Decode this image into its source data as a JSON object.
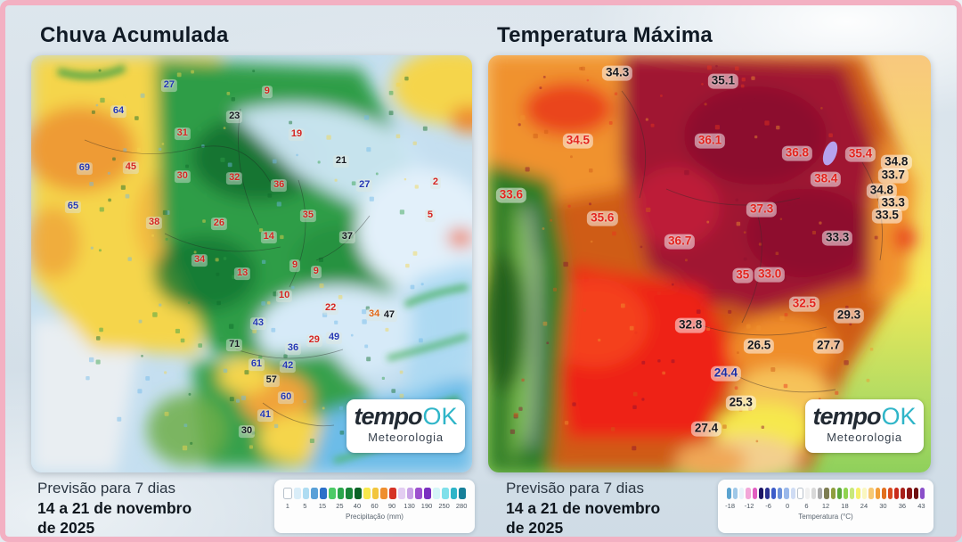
{
  "frame": {
    "border_color": "#f3b0c2"
  },
  "branding": {
    "logo_tempo": "tempo",
    "logo_ok": "OK",
    "logo_subtitle": "Meteorologia",
    "logo_accent": "#2fb5c8"
  },
  "left_panel": {
    "title": "Chuva Acumulada",
    "forecast": {
      "line1": "Previsão para 7 dias",
      "line2": "14 a 21 de novembro",
      "line3": "de 2025"
    }
  },
  "right_panel": {
    "title": "Temperatura Máxima",
    "forecast": {
      "line1": "Previsão para 7 dias",
      "line2": "14 a 21 de novembro",
      "line3": "de 2025"
    }
  },
  "chart_data": [
    {
      "type": "heatmap",
      "title": "Chuva Acumulada",
      "legend_label": "Precipitação (mm)",
      "legend_ticks": [
        "1",
        "5",
        "15",
        "25",
        "40",
        "60",
        "90",
        "130",
        "190",
        "250",
        "280"
      ],
      "legend_colors": [
        "#ffffff",
        "#d9edf8",
        "#aedcf2",
        "#59a0d8",
        "#2b6fc9",
        "#4ccb66",
        "#2aa64b",
        "#188538",
        "#0a6326",
        "#f7e84c",
        "#f2c63d",
        "#ef8e2e",
        "#d63226",
        "#e3cdf2",
        "#c9a2e6",
        "#9c50ce",
        "#7a2fc0",
        "#d4f5f8",
        "#7fe0ea",
        "#2cb4c8",
        "#167f99"
      ],
      "label_colors": {
        "blue": "#2438b4",
        "red": "#d42420",
        "dark": "#14181f",
        "orange": "#e06818"
      },
      "point_labels": [
        {
          "v": "27",
          "x": 31.3,
          "y": 7.3,
          "c": "blue"
        },
        {
          "v": "9",
          "x": 53.5,
          "y": 8.8,
          "c": "red"
        },
        {
          "v": "64",
          "x": 19.8,
          "y": 13.5,
          "c": "blue"
        },
        {
          "v": "23",
          "x": 46.1,
          "y": 14.7,
          "c": "dark"
        },
        {
          "v": "31",
          "x": 34.3,
          "y": 18.8,
          "c": "red"
        },
        {
          "v": "19",
          "x": 60.2,
          "y": 19.0,
          "c": "red"
        },
        {
          "v": "21",
          "x": 70.3,
          "y": 25.4,
          "c": "dark"
        },
        {
          "v": "69",
          "x": 12.1,
          "y": 27.1,
          "c": "blue"
        },
        {
          "v": "45",
          "x": 22.6,
          "y": 26.9,
          "c": "red"
        },
        {
          "v": "30",
          "x": 34.3,
          "y": 29.1,
          "c": "red"
        },
        {
          "v": "32",
          "x": 46.1,
          "y": 29.5,
          "c": "red"
        },
        {
          "v": "36",
          "x": 56.2,
          "y": 31.2,
          "c": "red"
        },
        {
          "v": "2",
          "x": 91.7,
          "y": 30.6,
          "c": "red"
        },
        {
          "v": "27",
          "x": 75.6,
          "y": 31.2,
          "c": "blue"
        },
        {
          "v": "65",
          "x": 9.5,
          "y": 36.3,
          "c": "blue"
        },
        {
          "v": "38",
          "x": 27.9,
          "y": 40.2,
          "c": "red"
        },
        {
          "v": "26",
          "x": 42.6,
          "y": 40.4,
          "c": "red"
        },
        {
          "v": "35",
          "x": 62.8,
          "y": 38.5,
          "c": "red"
        },
        {
          "v": "5",
          "x": 90.5,
          "y": 38.5,
          "c": "red"
        },
        {
          "v": "14",
          "x": 53.9,
          "y": 43.6,
          "c": "red"
        },
        {
          "v": "37",
          "x": 71.7,
          "y": 43.6,
          "c": "dark"
        },
        {
          "v": "34",
          "x": 38.2,
          "y": 49.1,
          "c": "red"
        },
        {
          "v": "13",
          "x": 47.9,
          "y": 52.4,
          "c": "red"
        },
        {
          "v": "9",
          "x": 59.8,
          "y": 50.4,
          "c": "red"
        },
        {
          "v": "9",
          "x": 64.6,
          "y": 51.9,
          "c": "red"
        },
        {
          "v": "10",
          "x": 57.4,
          "y": 57.7,
          "c": "red"
        },
        {
          "v": "22",
          "x": 67.9,
          "y": 60.7,
          "c": "red"
        },
        {
          "v": "43",
          "x": 51.5,
          "y": 64.3,
          "c": "blue"
        },
        {
          "v": "34",
          "x": 77.8,
          "y": 62.2,
          "c": "orange"
        },
        {
          "v": "47",
          "x": 81.2,
          "y": 62.4,
          "c": "dark"
        },
        {
          "v": "71",
          "x": 46.1,
          "y": 69.4,
          "c": "dark"
        },
        {
          "v": "29",
          "x": 64.2,
          "y": 68.4,
          "c": "red"
        },
        {
          "v": "49",
          "x": 68.7,
          "y": 67.7,
          "c": "blue"
        },
        {
          "v": "36",
          "x": 59.4,
          "y": 70.3,
          "c": "blue"
        },
        {
          "v": "61",
          "x": 51.1,
          "y": 74.1,
          "c": "blue"
        },
        {
          "v": "42",
          "x": 58.2,
          "y": 74.6,
          "c": "blue"
        },
        {
          "v": "57",
          "x": 54.5,
          "y": 78.0,
          "c": "dark"
        },
        {
          "v": "60",
          "x": 57.8,
          "y": 82.1,
          "c": "blue"
        },
        {
          "v": "41",
          "x": 53.1,
          "y": 86.3,
          "c": "blue"
        },
        {
          "v": "30",
          "x": 48.9,
          "y": 90.2,
          "c": "dark"
        }
      ]
    },
    {
      "type": "heatmap",
      "title": "Temperatura Máxima",
      "legend_label": "Temperatura (°C)",
      "legend_ticks": [
        "-18",
        "-12",
        "-6",
        "0",
        "6",
        "12",
        "18",
        "24",
        "30",
        "36",
        "43"
      ],
      "legend_colors": [
        "#5ba3cf",
        "#9fc8e8",
        "#e8f2fa",
        "#f2a6d8",
        "#e25ec1",
        "#1b1464",
        "#2a3090",
        "#3b5bc9",
        "#6b8fd9",
        "#9ab8ea",
        "#cfdcf4",
        "#ffffff",
        "#f0f0f0",
        "#d8d8d8",
        "#a9a9a9",
        "#7d7d52",
        "#8f9e3e",
        "#5ca838",
        "#8fd44f",
        "#c8e87a",
        "#f5ef6a",
        "#faf7c0",
        "#f7c873",
        "#f29e38",
        "#e2701f",
        "#d94a1f",
        "#c92a1a",
        "#a8201a",
        "#8a1515",
        "#6e0f0f",
        "#8a4fc9"
      ],
      "label_colors": {
        "red": "#e3241d",
        "black": "#17181c",
        "blue": "#1b2ea3"
      },
      "point_labels": [
        {
          "v": "34.3",
          "x": 29.2,
          "y": 4.3,
          "c": "black"
        },
        {
          "v": "35.1",
          "x": 53.1,
          "y": 6.2,
          "c": "black"
        },
        {
          "v": "34.5",
          "x": 20.3,
          "y": 20.5,
          "c": "red"
        },
        {
          "v": "36.1",
          "x": 50.1,
          "y": 20.5,
          "c": "red"
        },
        {
          "v": "36.8",
          "x": 69.8,
          "y": 23.5,
          "c": "red"
        },
        {
          "v": "35.4",
          "x": 84.1,
          "y": 23.7,
          "c": "red"
        },
        {
          "v": "34.8",
          "x": 92.2,
          "y": 25.6,
          "c": "black"
        },
        {
          "v": "33.7",
          "x": 91.5,
          "y": 28.8,
          "c": "black"
        },
        {
          "v": "38.4",
          "x": 76.3,
          "y": 29.7,
          "c": "red"
        },
        {
          "v": "34.8",
          "x": 88.9,
          "y": 32.5,
          "c": "black"
        },
        {
          "v": "33.6",
          "x": 5.2,
          "y": 33.5,
          "c": "red"
        },
        {
          "v": "33.3",
          "x": 91.5,
          "y": 35.5,
          "c": "black"
        },
        {
          "v": "37.3",
          "x": 61.8,
          "y": 37.0,
          "c": "red"
        },
        {
          "v": "33.5",
          "x": 90.1,
          "y": 38.5,
          "c": "black"
        },
        {
          "v": "35.6",
          "x": 25.8,
          "y": 39.1,
          "c": "red"
        },
        {
          "v": "33.3",
          "x": 78.9,
          "y": 43.8,
          "c": "black"
        },
        {
          "v": "36.7",
          "x": 43.3,
          "y": 44.7,
          "c": "red"
        },
        {
          "v": "35",
          "x": 57.5,
          "y": 52.8,
          "c": "red"
        },
        {
          "v": "33.0",
          "x": 63.6,
          "y": 52.6,
          "c": "red"
        },
        {
          "v": "32.5",
          "x": 71.4,
          "y": 59.6,
          "c": "red"
        },
        {
          "v": "29.3",
          "x": 81.5,
          "y": 62.4,
          "c": "black"
        },
        {
          "v": "32.8",
          "x": 45.7,
          "y": 64.7,
          "c": "black"
        },
        {
          "v": "26.5",
          "x": 61.2,
          "y": 69.7,
          "c": "black"
        },
        {
          "v": "27.7",
          "x": 76.9,
          "y": 69.7,
          "c": "black"
        },
        {
          "v": "24.4",
          "x": 53.7,
          "y": 76.3,
          "c": "blue"
        },
        {
          "v": "25.3",
          "x": 57.1,
          "y": 83.3,
          "c": "black"
        },
        {
          "v": "27.4",
          "x": 49.3,
          "y": 89.5,
          "c": "black"
        }
      ]
    }
  ]
}
